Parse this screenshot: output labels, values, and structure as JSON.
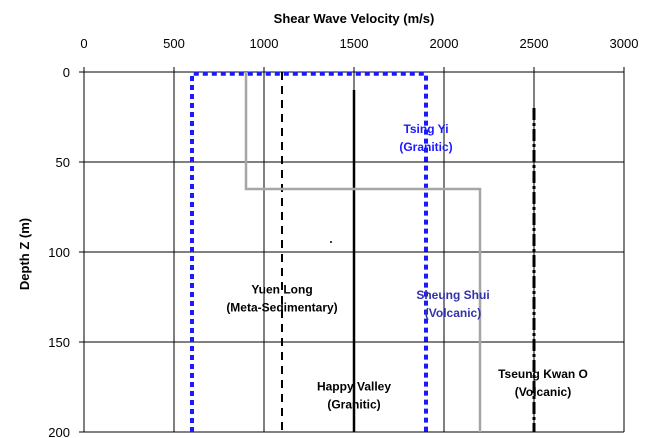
{
  "chart_data": {
    "type": "line",
    "xlabel": "Shear Wave Velocity (m/s)",
    "ylabel": "Depth  Z (m)",
    "x_axis_position": "top",
    "y_axis_inverted": true,
    "xlim": [
      0,
      3000
    ],
    "ylim": [
      0,
      200
    ],
    "xticks": [
      "0",
      "500",
      "1000",
      "1500",
      "2000",
      "2500",
      "3000"
    ],
    "yticks": [
      "0",
      "50",
      "100",
      "150",
      "200"
    ],
    "grid": true,
    "series": [
      {
        "style": "dashed",
        "color": "#000000",
        "points": [
          [
            1100,
            0
          ],
          [
            1100,
            200
          ]
        ]
      },
      {
        "style": "solid",
        "color": "#000000",
        "points": [
          [
            1500,
            10
          ],
          [
            1500,
            200
          ]
        ]
      },
      {
        "style": "dotted",
        "color": "#1a1aff",
        "points": [
          [
            600,
            200
          ],
          [
            600,
            1
          ],
          [
            1900,
            1
          ],
          [
            1900,
            200
          ]
        ]
      },
      {
        "style": "solid",
        "color": "#a6a6a6",
        "points": [
          [
            900,
            0
          ],
          [
            900,
            65
          ],
          [
            2200,
            65
          ],
          [
            2200,
            200
          ]
        ]
      },
      {
        "style": "dash-dot",
        "color": "#000000",
        "points": [
          [
            2500,
            20
          ],
          [
            2500,
            200
          ]
        ]
      }
    ],
    "annotations": [
      {
        "lines": [
          "Tsing Yi",
          "(Granitic)"
        ],
        "x": 1900,
        "y": 34,
        "color": "#1a1aff"
      },
      {
        "lines": [
          "Yuen Long",
          "(Meta-Sedimentary)"
        ],
        "x": 1100,
        "y": 123,
        "color": "#000000"
      },
      {
        "lines": [
          "Sheung Shui",
          "(Volcanic)"
        ],
        "x": 2050,
        "y": 126,
        "color": "#3333aa"
      },
      {
        "lines": [
          "Tseung Kwan O",
          "(Volcanic)"
        ],
        "x": 2550,
        "y": 170,
        "color": "#000000"
      },
      {
        "lines": [
          "Happy Valley",
          "(Granitic)"
        ],
        "x": 1500,
        "y": 177,
        "color": "#000000"
      }
    ]
  }
}
